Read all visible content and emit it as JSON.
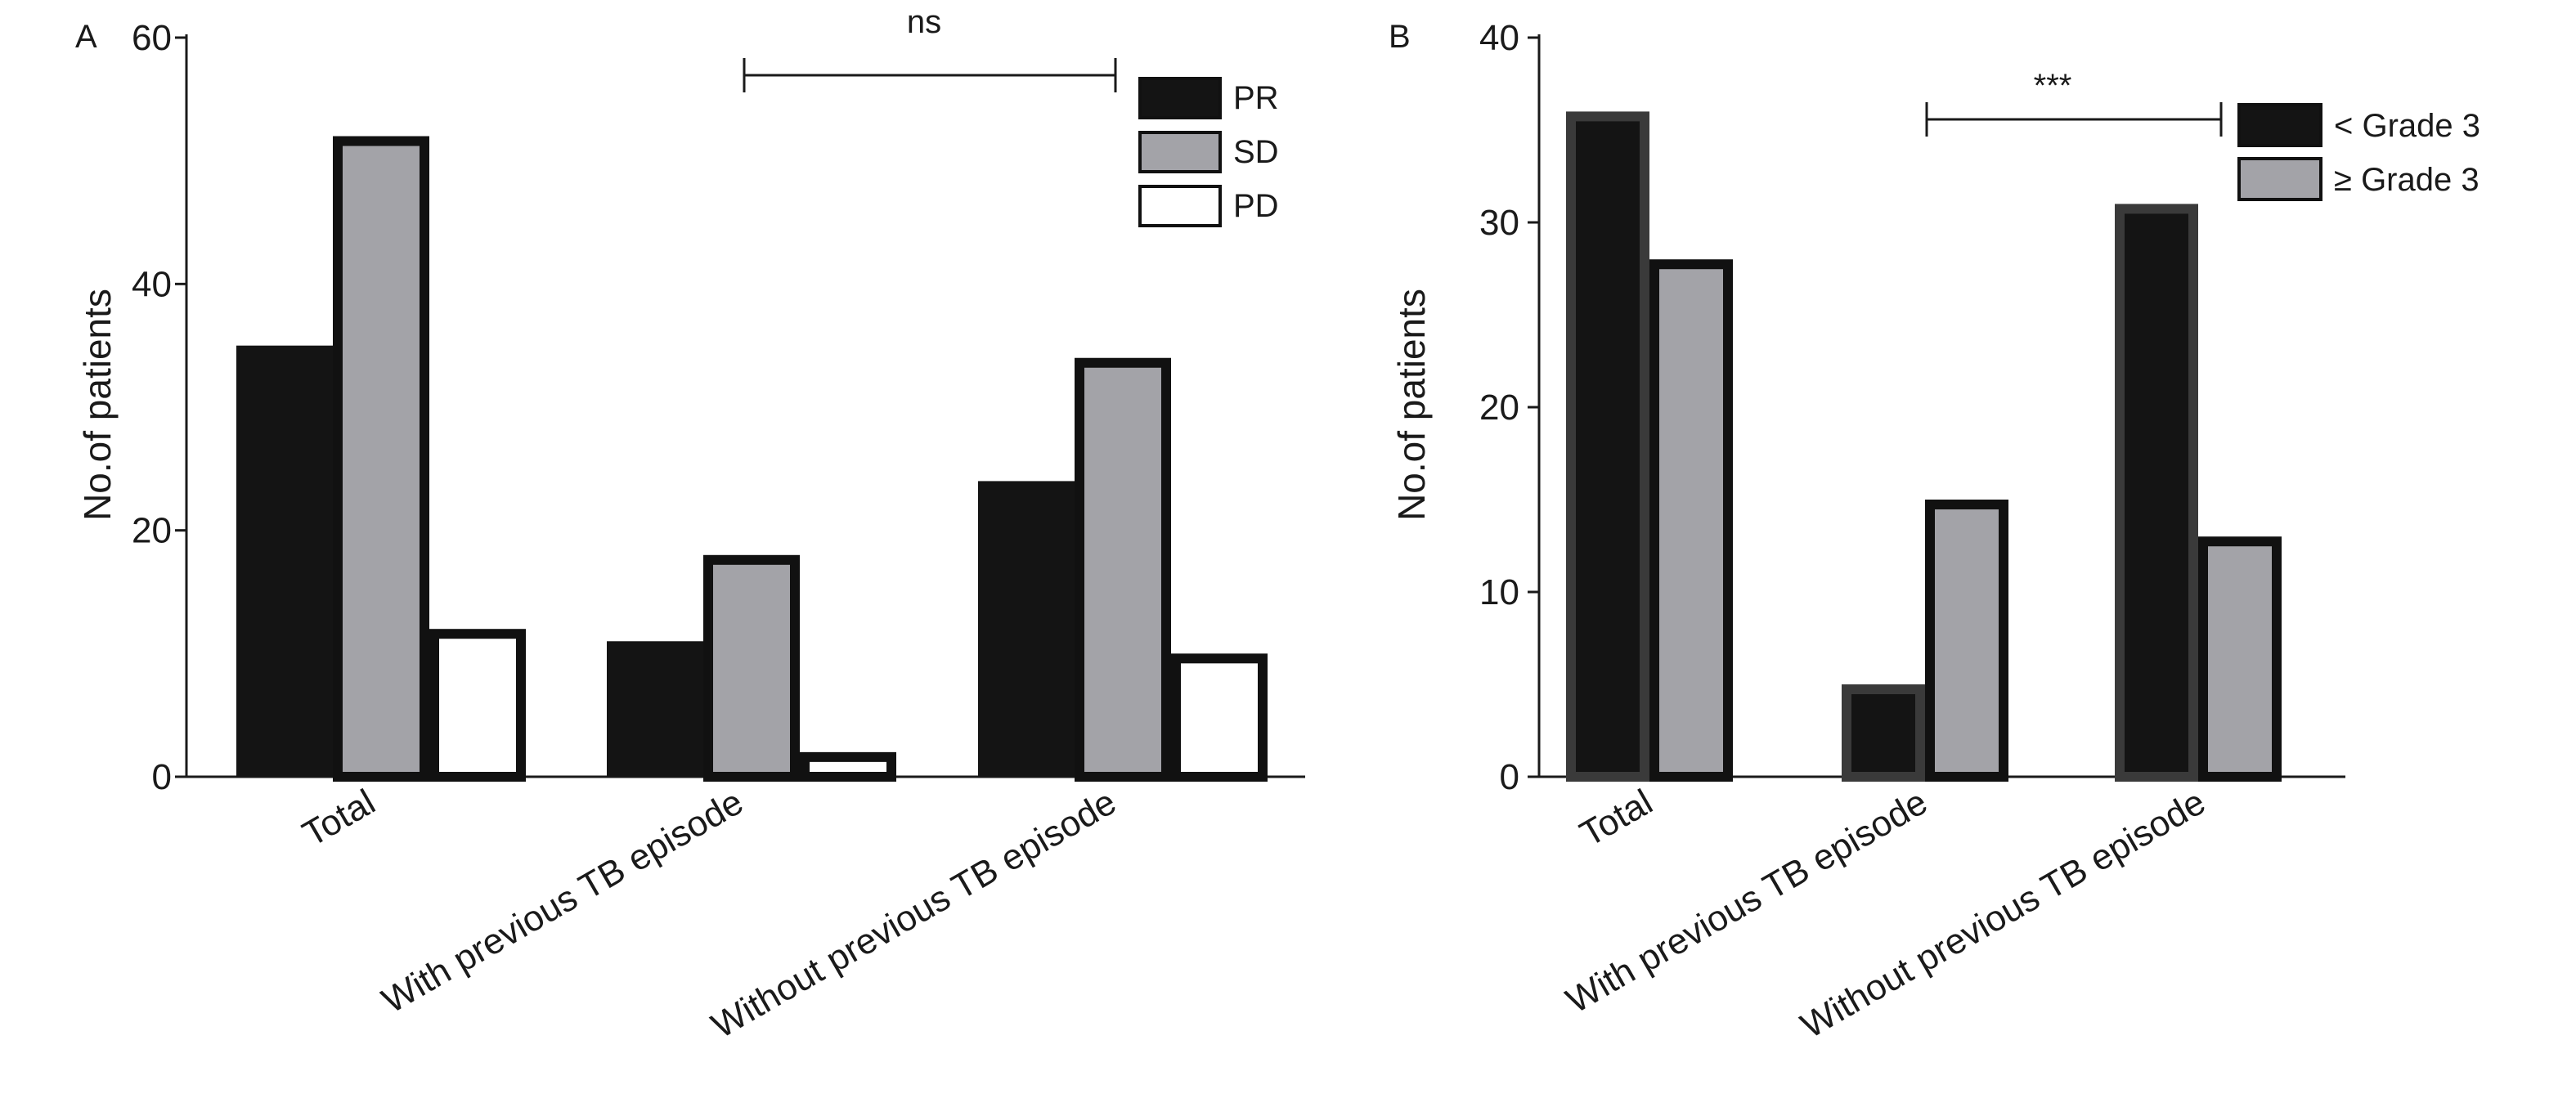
{
  "chart_data": [
    {
      "panel_label": "A",
      "type": "bar",
      "categories": [
        "Total",
        "With previous TB episode",
        "Without previous TB episode"
      ],
      "series": [
        {
          "name": "PR",
          "values": [
            35,
            11,
            24
          ],
          "color": "#141414"
        },
        {
          "name": "SD",
          "values": [
            52,
            18,
            34
          ],
          "color": "#a3a3a8"
        },
        {
          "name": "PD",
          "values": [
            12,
            2,
            10
          ],
          "color": "#ffffff"
        }
      ],
      "ylabel": "No.of patients",
      "ylim": [
        0,
        60
      ],
      "yticks": [
        0,
        20,
        40,
        60
      ],
      "significance": {
        "label": "ns",
        "from_category": 1,
        "to_category": 2
      },
      "legend": "top-right",
      "grid": false
    },
    {
      "panel_label": "B",
      "type": "bar",
      "categories": [
        "Total",
        "With previous TB episode",
        "Without previous TB episode"
      ],
      "series": [
        {
          "name": "< Grade 3",
          "values": [
            36,
            5,
            31
          ],
          "color": "#141414"
        },
        {
          "name": "≥ Grade 3",
          "values": [
            28,
            15,
            13
          ],
          "color": "#a3a3a8"
        }
      ],
      "ylabel": "No.of patients",
      "ylim": [
        0,
        40
      ],
      "yticks": [
        0,
        10,
        20,
        30,
        40
      ],
      "significance": {
        "label": "***",
        "from_category": 1,
        "to_category": 2
      },
      "legend": "top-right",
      "grid": false
    }
  ]
}
